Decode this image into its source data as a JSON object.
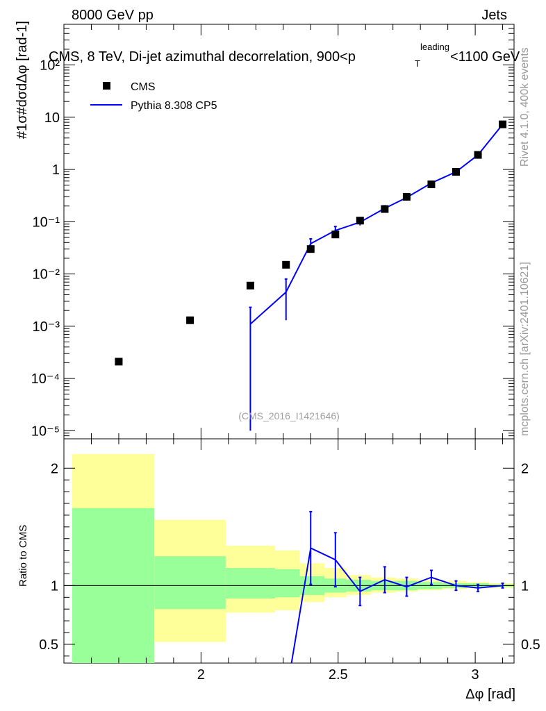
{
  "header": {
    "left": "8000 GeV pp",
    "right": "Jets"
  },
  "side_labels": {
    "rivet": "Rivet 4.1.0,  400k events",
    "mcplots": "mcplots.cern.ch [arXiv:2401.10621]"
  },
  "watermark": "(CMS_2016_I1421646)",
  "chart_data": [
    {
      "type": "scatter",
      "title": "CMS, 8 TeV, Di-jet azimuthal decorrelation, 900<p",
      "title_superscript": "leading",
      "title_subscript": "T",
      "title_suffix": "<1100 GeV",
      "ylabel": "#frac{1}{#sigma}#frac{d#sigma}{d#Delta#phi} [rad⁻¹]",
      "ylabel_display": "#1σ#dσdΔφ [rad-1]",
      "yscale": "log",
      "xlim": [
        1.5,
        3.1416
      ],
      "ylim": [
        7e-06,
        600
      ],
      "y_tick_labels": [
        "10⁻⁵",
        "10⁻⁴",
        "10⁻³",
        "10⁻²",
        "10⁻¹",
        "1",
        "10",
        "10²"
      ],
      "legend": {
        "position": "top-left",
        "entries": [
          {
            "label": "CMS",
            "marker": "square",
            "color": "#000000"
          },
          {
            "label": "Pythia 8.308 CP5",
            "marker": "line",
            "color": "#0000ff"
          }
        ]
      },
      "series": [
        {
          "name": "CMS",
          "x": [
            1.7,
            1.96,
            2.18,
            2.31,
            2.4,
            2.49,
            2.58,
            2.67,
            2.75,
            2.84,
            2.93,
            3.01,
            3.1
          ],
          "y": [
            0.00021,
            0.0013,
            0.006,
            0.015,
            0.03,
            0.057,
            0.105,
            0.175,
            0.3,
            0.52,
            0.9,
            1.9,
            7.3
          ]
        },
        {
          "name": "Pythia 8.308 CP5",
          "x": [
            2.18,
            2.31,
            2.4,
            2.49,
            2.58,
            2.67,
            2.75,
            2.84,
            2.93,
            3.01,
            3.1
          ],
          "y": [
            0.0011,
            0.0045,
            0.038,
            0.068,
            0.098,
            0.18,
            0.29,
            0.55,
            0.9,
            1.9,
            7.3
          ],
          "y_err_low": [
            0.00109,
            0.0032,
            0.009,
            0.013,
            0.013,
            0.022,
            0.02,
            0.03,
            0.03,
            0.06,
            0.12
          ],
          "y_err_high": [
            0.0012,
            0.0035,
            0.009,
            0.013,
            0.013,
            0.022,
            0.02,
            0.03,
            0.03,
            0.06,
            0.12
          ]
        }
      ]
    },
    {
      "type": "line",
      "ylabel": "Ratio to CMS",
      "xlabel": "Δφ [rad]",
      "xlim": [
        1.5,
        3.1416
      ],
      "ylim": [
        0.34,
        2.25
      ],
      "x_tick_labels": [
        "2",
        "2.5",
        "3"
      ],
      "y_tick_labels": [
        "0.5",
        "1",
        "2"
      ],
      "reference_line": 1,
      "uncertainty_bands": {
        "bin_edges": [
          1.53,
          1.83,
          2.09,
          2.27,
          2.36,
          2.45,
          2.53,
          2.62,
          2.71,
          2.79,
          2.88,
          2.97,
          3.05,
          3.14
        ],
        "yellow_low": [
          0.34,
          0.52,
          0.77,
          0.79,
          0.86,
          0.9,
          0.92,
          0.94,
          0.95,
          0.96,
          0.97,
          0.98,
          0.98
        ],
        "yellow_high": [
          2.12,
          1.56,
          1.34,
          1.3,
          1.19,
          1.15,
          1.09,
          1.07,
          1.06,
          1.05,
          1.04,
          1.03,
          1.02
        ],
        "green_low": [
          0.34,
          0.8,
          0.89,
          0.9,
          0.92,
          0.94,
          0.95,
          0.96,
          0.96,
          0.97,
          0.98,
          0.99,
          0.99
        ],
        "green_high": [
          1.66,
          1.25,
          1.15,
          1.14,
          1.08,
          1.06,
          1.05,
          1.04,
          1.04,
          1.03,
          1.02,
          1.02,
          1.01
        ]
      },
      "series": [
        {
          "name": "Pythia 8.308 CP5",
          "x": [
            2.33,
            2.4,
            2.49,
            2.58,
            2.67,
            2.75,
            2.84,
            2.93,
            3.01,
            3.1
          ],
          "y": [
            0.34,
            1.32,
            1.22,
            0.95,
            1.05,
            0.99,
            1.07,
            1.0,
            0.98,
            1.0
          ],
          "y_err": [
            0,
            0.31,
            0.23,
            0.12,
            0.11,
            0.08,
            0.06,
            0.04,
            0.03,
            0.02
          ]
        }
      ]
    }
  ]
}
